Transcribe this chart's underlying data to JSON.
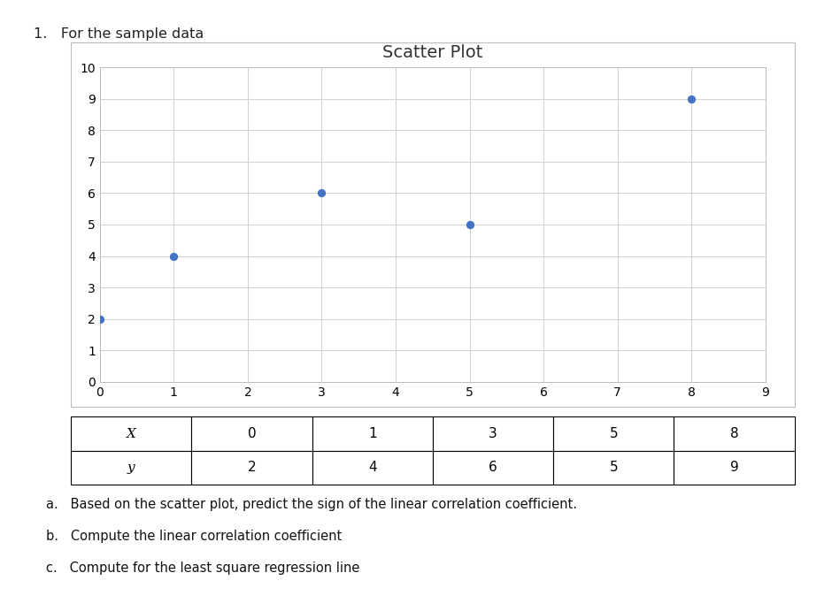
{
  "title": "Scatter Plot",
  "x_data": [
    0,
    1,
    3,
    5,
    8
  ],
  "y_data": [
    2,
    4,
    6,
    5,
    9
  ],
  "xlim": [
    0,
    9
  ],
  "ylim": [
    0,
    10
  ],
  "xticks": [
    0,
    1,
    2,
    3,
    4,
    5,
    6,
    7,
    8,
    9
  ],
  "yticks": [
    0,
    1,
    2,
    3,
    4,
    5,
    6,
    7,
    8,
    9,
    10
  ],
  "dot_color": "#4472C4",
  "dot_size": 45,
  "grid_color": "#D0D0D0",
  "background_color": "#FFFFFF",
  "title_fontsize": 14,
  "tick_fontsize": 10,
  "header_label": "1.   For the sample data",
  "table_row_x": [
    "X",
    "0",
    "1",
    "3",
    "5",
    "8"
  ],
  "table_row_y": [
    "y",
    "2",
    "4",
    "6",
    "5",
    "9"
  ],
  "note_a": "a.   Based on the scatter plot, predict the sign of the linear correlation coefficient.",
  "note_b": "b.   Compute the linear correlation coefficient",
  "note_c": "c.   Compute for the least square regression line"
}
